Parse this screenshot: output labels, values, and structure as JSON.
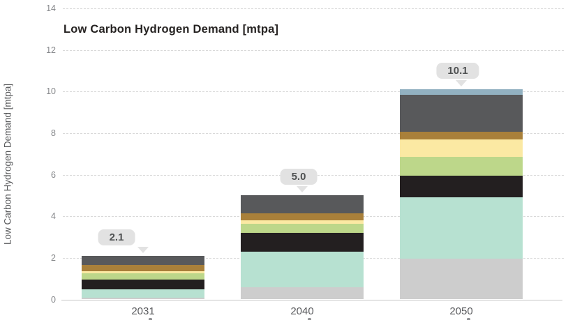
{
  "page": {
    "background": "#ffffff"
  },
  "chart_data": {
    "type": "bar",
    "stacked": true,
    "title": "Low Carbon Hydrogen Demand [mtpa]",
    "ylabel": "Low Carbon Hydrogen Demand [mtpa]",
    "xlabel": "",
    "categories": [
      "2031",
      "2040",
      "2050"
    ],
    "totals": [
      2.1,
      5.0,
      10.1
    ],
    "total_labels": [
      "2.1",
      "5.0",
      "10.1"
    ],
    "ylim": [
      0,
      14
    ],
    "yticks": [
      0,
      2,
      4,
      6,
      8,
      10,
      12,
      14
    ],
    "ytick_labels": [
      "0",
      "2",
      "4",
      "6",
      "8",
      "10",
      "12",
      "14"
    ],
    "grid": "horizontal-dashed",
    "legend": "none",
    "series": [
      {
        "name": "segment-light-gray",
        "color": "#cdcdcd",
        "values": [
          0.1,
          0.6,
          1.95
        ]
      },
      {
        "name": "segment-mint",
        "color": "#b7e1d1",
        "values": [
          0.4,
          1.7,
          2.95
        ]
      },
      {
        "name": "segment-black",
        "color": "#231f20",
        "values": [
          0.45,
          0.9,
          1.05
        ]
      },
      {
        "name": "segment-light-green",
        "color": "#bdd78a",
        "values": [
          0.3,
          0.45,
          0.9
        ]
      },
      {
        "name": "segment-pale-yellow",
        "color": "#fbe9a3",
        "values": [
          0.1,
          0.15,
          0.85
        ]
      },
      {
        "name": "segment-ochre-brown",
        "color": "#a9803a",
        "values": [
          0.3,
          0.35,
          0.35
        ]
      },
      {
        "name": "segment-dark-gray",
        "color": "#58595b",
        "values": [
          0.45,
          0.85,
          1.8
        ]
      },
      {
        "name": "segment-steel-blue",
        "color": "#92b1c1",
        "values": [
          0.0,
          0.0,
          0.25
        ]
      }
    ],
    "annotations": {
      "style": "gray-rounded-callout-with-pointer",
      "bubble_color": "#e2e2e2",
      "text_color": "#4f5152"
    }
  },
  "axis_style": {
    "grid_color": "#d9d9d9",
    "baseline_color": "#c7c7c7",
    "tick_label_color": "#85878a",
    "category_label_color": "#5a5b5e"
  }
}
